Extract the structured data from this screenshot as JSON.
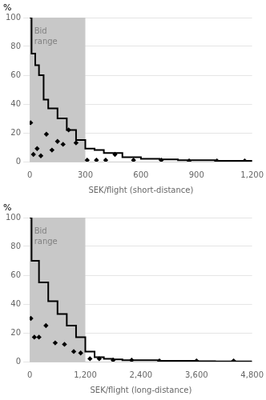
{
  "chart_data": [
    {
      "type": "line",
      "xlabel": "SEK/flight (short-distance)",
      "ylabel": "%",
      "xlim": [
        0,
        1200
      ],
      "xticks": [
        0,
        300,
        600,
        900,
        1200
      ],
      "ylim": [
        0,
        100
      ],
      "yticks": [
        0,
        20,
        40,
        60,
        80,
        100
      ],
      "grid": true,
      "bid_range": {
        "x": [
          0,
          300
        ],
        "color": "#c8c8c8",
        "label": "Bid\nrange",
        "label_color": "#808080"
      },
      "series": [
        {
          "type": "line",
          "color": "#000000",
          "line_style": "solid",
          "x": [
            0,
            10,
            10,
            30,
            30,
            50,
            50,
            75,
            75,
            100,
            100,
            150,
            150,
            200,
            200,
            250,
            250,
            300,
            300,
            350,
            350,
            400,
            400,
            500,
            500,
            600,
            600,
            700,
            700,
            800,
            800,
            900,
            900,
            1000,
            1000,
            1100,
            1100,
            1200,
            1200
          ],
          "values": [
            100,
            100,
            75,
            75,
            67,
            67,
            60,
            60,
            43,
            43,
            37,
            37,
            30,
            30,
            22,
            22,
            15,
            15,
            9,
            9,
            8,
            8,
            6,
            6,
            3,
            3,
            2,
            2,
            1.5,
            1.5,
            1,
            1,
            1,
            1,
            0.5,
            0.5,
            0.5,
            0.5,
            0
          ]
        },
        {
          "type": "scatter",
          "color": "#000000",
          "marker": "diamond",
          "x": [
            5,
            20,
            40,
            60,
            90,
            120,
            150,
            180,
            210,
            250,
            310,
            360,
            410,
            460,
            560,
            710,
            860,
            1010,
            1160
          ],
          "values": [
            27,
            5,
            9,
            4,
            19,
            8,
            14,
            12,
            22,
            13,
            1,
            1,
            1,
            5,
            1,
            1,
            0.5,
            0.5,
            0.5
          ]
        }
      ]
    },
    {
      "type": "line",
      "xlabel": "SEK/flight (long-distance)",
      "ylabel": "%",
      "xlim": [
        0,
        4800
      ],
      "xticks": [
        0,
        1200,
        2400,
        3600,
        4800
      ],
      "ylim": [
        0,
        100
      ],
      "yticks": [
        0,
        20,
        40,
        60,
        80,
        100
      ],
      "grid": true,
      "bid_range": {
        "x": [
          0,
          1200
        ],
        "color": "#c8c8c8",
        "label": "Bid\nrange",
        "label_color": "#808080"
      },
      "series": [
        {
          "type": "line",
          "color": "#000000",
          "line_style": "solid",
          "x": [
            0,
            40,
            40,
            200,
            200,
            400,
            400,
            600,
            600,
            800,
            800,
            1000,
            1000,
            1200,
            1200,
            1400,
            1400,
            1600,
            1600,
            1800,
            1800,
            2000,
            2000,
            2400,
            2400,
            2800,
            2800,
            3200,
            3200,
            3600,
            3600,
            4000,
            4000,
            4400,
            4400,
            4800
          ],
          "values": [
            100,
            100,
            70,
            70,
            55,
            55,
            42,
            42,
            33,
            33,
            25,
            25,
            17,
            17,
            7,
            7,
            3,
            3,
            2,
            2,
            1.5,
            1.5,
            1,
            1,
            1,
            1,
            0.5,
            0.5,
            0.5,
            0.5,
            0.3,
            0.3,
            0.2,
            0.2,
            0.1,
            0.1
          ]
        },
        {
          "type": "scatter",
          "color": "#000000",
          "marker": "diamond",
          "x": [
            25,
            100,
            200,
            350,
            550,
            750,
            950,
            1100,
            1300,
            1500,
            1800,
            2200,
            2800,
            3600,
            4400
          ],
          "values": [
            30,
            17,
            17,
            25,
            13,
            12,
            7,
            6,
            2,
            2,
            1,
            1,
            0.5,
            0.5,
            0.5
          ]
        }
      ]
    }
  ]
}
